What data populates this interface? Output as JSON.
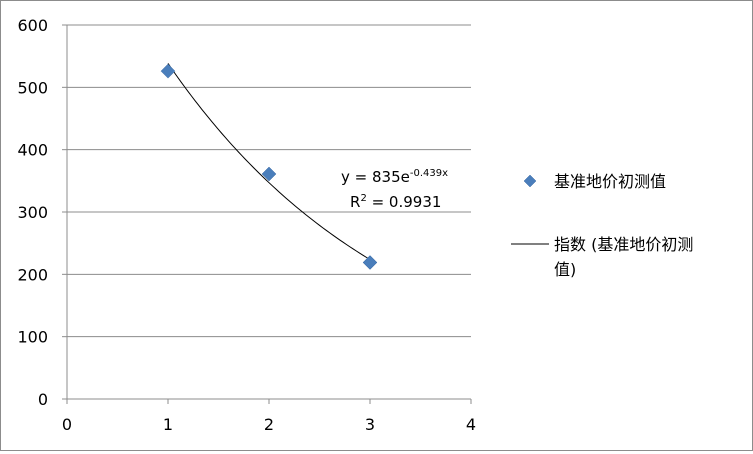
{
  "chart_data": {
    "type": "scatter",
    "title": "",
    "xlabel": "",
    "ylabel": "",
    "xlim": [
      0,
      4
    ],
    "ylim": [
      0,
      600
    ],
    "x_ticks": [
      0,
      1,
      2,
      3,
      4
    ],
    "y_ticks": [
      0,
      100,
      200,
      300,
      400,
      500,
      600
    ],
    "grid": {
      "horizontal": true,
      "vertical": false
    },
    "legend_position": "right",
    "series": [
      {
        "name": "基准地价初测值",
        "kind": "scatter",
        "marker": "diamond",
        "color": "#4a7ebb",
        "x": [
          1,
          2,
          3
        ],
        "y": [
          526,
          361,
          219
        ]
      },
      {
        "name": "指数 (基准地价初测值)",
        "legend_lines": [
          "指数 (基准地价初测",
          "值)"
        ],
        "kind": "trendline",
        "fit": "exponential",
        "a": 835,
        "b": -0.439,
        "x_range": [
          1,
          3
        ],
        "color": "#000000"
      }
    ],
    "annotations": {
      "equation_prefix": "y = 835e",
      "equation_exponent": "-0.439x",
      "r2_prefix": "R",
      "r2_superscript": "2",
      "r2_value": " = 0.9931"
    }
  }
}
